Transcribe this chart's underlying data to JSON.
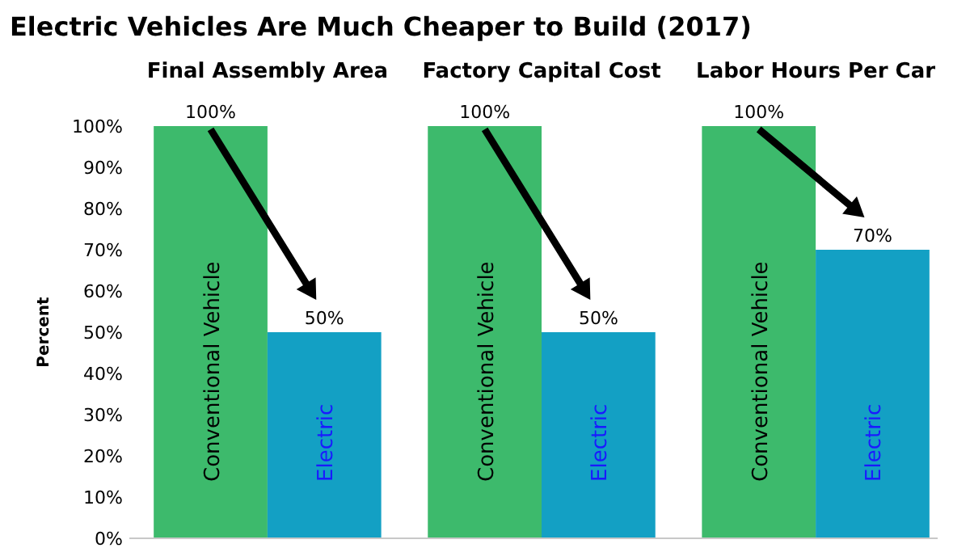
{
  "chart_data": {
    "type": "bar",
    "title": "Electric Vehicles Are Much Cheaper to Build (2017)",
    "ylabel": "Percent",
    "categories": [
      "Final Assembly Area",
      "Factory Capital Cost",
      "Labor Hours Per Car"
    ],
    "series": [
      {
        "name": "Conventional Vehicle",
        "color": "#3dba6c",
        "values": [
          100,
          100,
          100
        ],
        "value_labels": [
          "100%",
          "100%",
          "100%"
        ]
      },
      {
        "name": "Electric",
        "color": "#13a0c4",
        "values": [
          50,
          50,
          70
        ],
        "value_labels": [
          "50%",
          "50%",
          "70%"
        ]
      }
    ],
    "ylim": [
      0,
      100
    ],
    "yticks": [
      {
        "value": 0,
        "label": "0%"
      },
      {
        "value": 10,
        "label": "10%"
      },
      {
        "value": 20,
        "label": "20%"
      },
      {
        "value": 30,
        "label": "30%"
      },
      {
        "value": 40,
        "label": "40%"
      },
      {
        "value": 50,
        "label": "50%"
      },
      {
        "value": 60,
        "label": "60%"
      },
      {
        "value": 70,
        "label": "70%"
      },
      {
        "value": 80,
        "label": "80%"
      },
      {
        "value": 90,
        "label": "90%"
      },
      {
        "value": 100,
        "label": "100%"
      }
    ],
    "grid": false
  }
}
